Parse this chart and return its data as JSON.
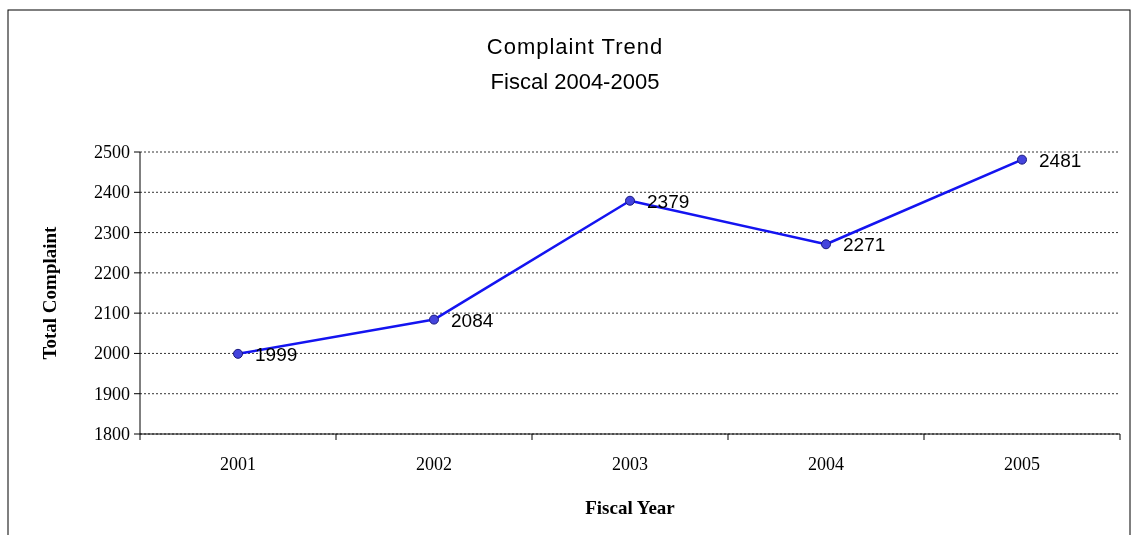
{
  "chart_data": {
    "type": "line",
    "title": "Complaint Trend",
    "subtitle": "Fiscal 2004-2005",
    "xlabel": "Fiscal Year",
    "ylabel": "Total Complaint",
    "categories": [
      "2001",
      "2002",
      "2003",
      "2004",
      "2005"
    ],
    "series": [
      {
        "color": "#1414f0",
        "values": [
          1999,
          2084,
          2379,
          2271,
          2481
        ]
      }
    ],
    "ylim": [
      1800,
      2500
    ],
    "yticks": [
      1800,
      1900,
      2000,
      2100,
      2200,
      2300,
      2400,
      2500
    ],
    "grid": "y",
    "data_labels": true,
    "marker": "circle",
    "line_style": "solid"
  }
}
